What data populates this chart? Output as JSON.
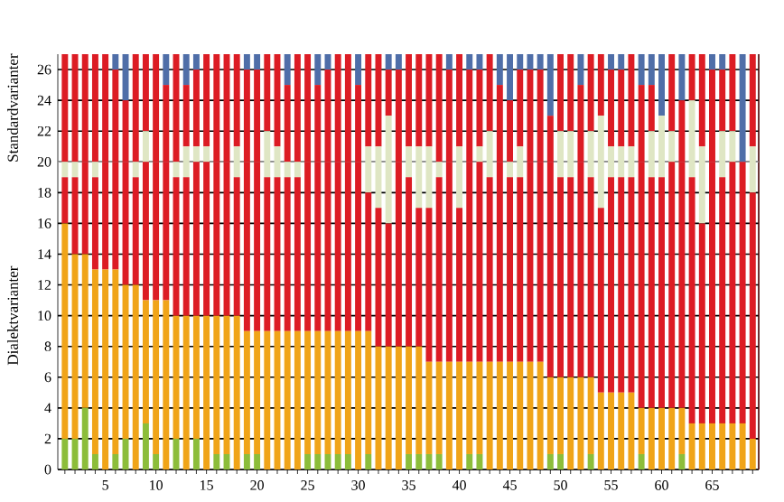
{
  "chart_data": {
    "type": "bar",
    "stacked": true,
    "annotations": [
      "Standardvarianter",
      "Dialektvarianter"
    ],
    "x": [
      1,
      2,
      3,
      4,
      5,
      6,
      7,
      8,
      9,
      10,
      11,
      12,
      13,
      14,
      15,
      16,
      17,
      18,
      19,
      20,
      21,
      22,
      23,
      24,
      25,
      26,
      27,
      28,
      29,
      30,
      31,
      32,
      33,
      34,
      35,
      36,
      37,
      38,
      39,
      40,
      41,
      42,
      43,
      44,
      45,
      46,
      47,
      48,
      49,
      50,
      51,
      52,
      53,
      54,
      55,
      56,
      57,
      58,
      59,
      60,
      61,
      62,
      63,
      64,
      65,
      66,
      67,
      68,
      69
    ],
    "series": [
      {
        "color": "#8cbd3a",
        "values": [
          2,
          2,
          4,
          1,
          0,
          1,
          2,
          0,
          3,
          1,
          0,
          2,
          0,
          2,
          0,
          1,
          1,
          0,
          1,
          1,
          0,
          0,
          0,
          0,
          1,
          1,
          1,
          1,
          1,
          0,
          1,
          0,
          0,
          0,
          1,
          1,
          1,
          1,
          0,
          0,
          1,
          1,
          0,
          0,
          0,
          0,
          0,
          0,
          1,
          1,
          0,
          0,
          1,
          0,
          0,
          0,
          0,
          1,
          0,
          0,
          0,
          1,
          0,
          0,
          0,
          0,
          0,
          0,
          0
        ]
      },
      {
        "color": "#f0a418",
        "values": [
          14,
          12,
          10,
          12,
          13,
          12,
          10,
          12,
          8,
          10,
          11,
          8,
          10,
          8,
          10,
          9,
          9,
          10,
          8,
          8,
          9,
          9,
          9,
          9,
          8,
          8,
          8,
          8,
          8,
          9,
          8,
          8,
          8,
          8,
          7,
          7,
          6,
          6,
          7,
          7,
          6,
          6,
          7,
          7,
          7,
          7,
          7,
          7,
          5,
          5,
          6,
          6,
          5,
          5,
          5,
          5,
          5,
          3,
          4,
          4,
          4,
          3,
          3,
          3,
          3,
          3,
          3,
          3,
          2
        ]
      },
      {
        "color": "#dc1c24",
        "values": [
          3,
          5,
          6,
          6,
          7,
          7,
          8,
          7,
          9,
          9,
          9,
          9,
          9,
          10,
          10,
          10,
          10,
          9,
          11,
          11,
          10,
          10,
          10,
          10,
          11,
          11,
          11,
          11,
          11,
          11,
          9,
          9,
          8,
          12,
          11,
          9,
          10,
          12,
          13,
          10,
          13,
          13,
          12,
          13,
          12,
          12,
          13,
          13,
          14,
          13,
          13,
          14,
          13,
          12,
          14,
          14,
          14,
          16,
          15,
          15,
          16,
          16,
          16,
          13,
          17,
          16,
          17,
          17,
          16
        ]
      },
      {
        "color": "#dfe6c4",
        "values": [
          1,
          1,
          0,
          1,
          0,
          0,
          0,
          1,
          2,
          0,
          0,
          1,
          2,
          1,
          1,
          0,
          0,
          2,
          0,
          0,
          3,
          2,
          1,
          1,
          0,
          0,
          0,
          0,
          0,
          0,
          3,
          4,
          7,
          0,
          2,
          4,
          4,
          1,
          0,
          4,
          0,
          1,
          3,
          0,
          1,
          2,
          0,
          0,
          0,
          3,
          3,
          0,
          3,
          6,
          2,
          2,
          2,
          0,
          3,
          4,
          2,
          0,
          5,
          5,
          0,
          3,
          2,
          0,
          3
        ]
      },
      {
        "color": "#dc1c24",
        "values": [
          7,
          7,
          7,
          7,
          7,
          6,
          4,
          7,
          5,
          7,
          5,
          7,
          4,
          5,
          6,
          7,
          7,
          6,
          6,
          6,
          5,
          6,
          5,
          7,
          7,
          5,
          6,
          7,
          7,
          5,
          6,
          6,
          3,
          6,
          6,
          6,
          6,
          7,
          6,
          6,
          6,
          5,
          5,
          5,
          4,
          5,
          6,
          6,
          3,
          5,
          5,
          5,
          5,
          4,
          5,
          5,
          6,
          5,
          3,
          0,
          5,
          4,
          3,
          6,
          6,
          4,
          5,
          0,
          6
        ]
      },
      {
        "color": "#4f6ea8",
        "values": [
          0,
          0,
          0,
          0,
          0,
          1,
          3,
          0,
          0,
          0,
          2,
          0,
          2,
          1,
          0,
          0,
          0,
          0,
          1,
          1,
          0,
          0,
          2,
          0,
          0,
          2,
          1,
          0,
          0,
          2,
          0,
          0,
          1,
          1,
          0,
          0,
          0,
          0,
          1,
          0,
          1,
          1,
          0,
          2,
          3,
          1,
          1,
          1,
          4,
          0,
          0,
          2,
          0,
          0,
          1,
          1,
          0,
          2,
          2,
          4,
          0,
          3,
          0,
          0,
          1,
          1,
          0,
          7,
          0
        ]
      }
    ],
    "xlim": [
      0.3,
      69.6
    ],
    "ylim": [
      0,
      27
    ],
    "xticks": [
      {
        "value": 1,
        "label": null
      },
      {
        "value": 2,
        "label": null
      },
      {
        "value": 3,
        "label": null
      },
      {
        "value": 4,
        "label": null
      },
      5,
      {
        "value": 6,
        "label": null
      },
      {
        "value": 7,
        "label": null
      },
      {
        "value": 8,
        "label": null
      },
      {
        "value": 9,
        "label": null
      },
      10,
      {
        "value": 11,
        "label": null
      },
      {
        "value": 12,
        "label": null
      },
      {
        "value": 13,
        "label": null
      },
      {
        "value": 14,
        "label": null
      },
      15,
      {
        "value": 16,
        "label": null
      },
      {
        "value": 17,
        "label": null
      },
      {
        "value": 18,
        "label": null
      },
      {
        "value": 19,
        "label": null
      },
      20,
      {
        "value": 21,
        "label": null
      },
      {
        "value": 22,
        "label": null
      },
      {
        "value": 23,
        "label": null
      },
      {
        "value": 24,
        "label": null
      },
      25,
      {
        "value": 26,
        "label": null
      },
      {
        "value": 27,
        "label": null
      },
      {
        "value": 28,
        "label": null
      },
      {
        "value": 29,
        "label": null
      },
      30,
      {
        "value": 31,
        "label": null
      },
      {
        "value": 32,
        "label": null
      },
      {
        "value": 33,
        "label": null
      },
      {
        "value": 34,
        "label": null
      },
      35,
      {
        "value": 36,
        "label": null
      },
      {
        "value": 37,
        "label": null
      },
      {
        "value": 38,
        "label": null
      },
      {
        "value": 39,
        "label": null
      },
      40,
      {
        "value": 41,
        "label": null
      },
      {
        "value": 42,
        "label": null
      },
      {
        "value": 43,
        "label": null
      },
      {
        "value": 44,
        "label": null
      },
      45,
      {
        "value": 46,
        "label": null
      },
      {
        "value": 47,
        "label": null
      },
      {
        "value": 48,
        "label": null
      },
      {
        "value": 49,
        "label": null
      },
      50,
      {
        "value": 51,
        "label": null
      },
      {
        "value": 52,
        "label": null
      },
      {
        "value": 53,
        "label": null
      },
      {
        "value": 54,
        "label": null
      },
      55,
      {
        "value": 56,
        "label": null
      },
      {
        "value": 57,
        "label": null
      },
      {
        "value": 58,
        "label": null
      },
      {
        "value": 59,
        "label": null
      },
      60,
      {
        "value": 61,
        "label": null
      },
      {
        "value": 62,
        "label": null
      },
      {
        "value": 63,
        "label": null
      },
      {
        "value": 64,
        "label": null
      },
      65,
      {
        "value": 66,
        "label": null
      },
      {
        "value": 67,
        "label": null
      },
      {
        "value": 68,
        "label": null
      },
      {
        "value": 69,
        "label": null
      }
    ],
    "yticks": [
      0,
      2,
      4,
      6,
      8,
      10,
      12,
      14,
      16,
      18,
      20,
      22,
      24,
      26
    ],
    "grid": "y",
    "ref_lines": [
      {
        "axis": "y",
        "value": 20,
        "color": "#9a9a9a"
      }
    ]
  }
}
